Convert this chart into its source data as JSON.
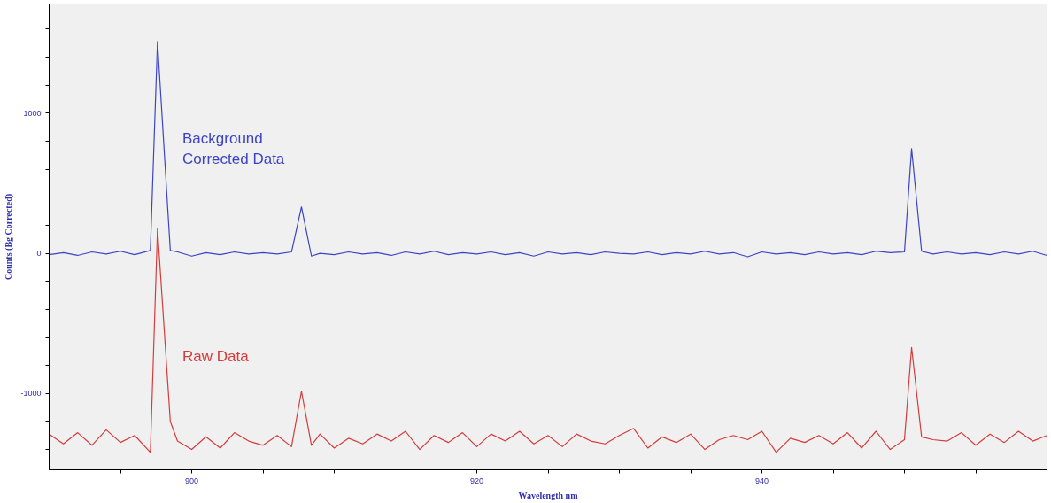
{
  "chart_data": {
    "type": "line",
    "xlabel": "Wavelength nm",
    "ylabel": "Counts (Bg Corrected)",
    "x": [
      890,
      891,
      892,
      893,
      894,
      895,
      896,
      897.1,
      897.6,
      898.5,
      899,
      900,
      901,
      902,
      903,
      904,
      905,
      906,
      907.0,
      907.7,
      908.4,
      909,
      910,
      911,
      912,
      913,
      914,
      915,
      916,
      917,
      918,
      919,
      920,
      921,
      922,
      923,
      924,
      925,
      926,
      927,
      928,
      929,
      930,
      931,
      932,
      933,
      934,
      935,
      936,
      937,
      938,
      939,
      940,
      941,
      942,
      943,
      944,
      945,
      946,
      947,
      948,
      949,
      950.0,
      950.5,
      951.2,
      952,
      953,
      954,
      955,
      956,
      957,
      958,
      959,
      960
    ],
    "series": [
      {
        "name": "Background Corrected Data",
        "color": "#3c44c4",
        "values": [
          -10,
          5,
          -15,
          10,
          -5,
          15,
          -10,
          20,
          1513,
          20,
          10,
          -20,
          5,
          -10,
          10,
          -5,
          5,
          -5,
          10,
          331,
          -20,
          0,
          -10,
          10,
          -5,
          5,
          -15,
          10,
          -5,
          15,
          -10,
          5,
          -5,
          10,
          -10,
          5,
          -20,
          10,
          -5,
          5,
          -10,
          10,
          0,
          -5,
          10,
          -10,
          5,
          -5,
          15,
          -5,
          5,
          -25,
          10,
          -5,
          5,
          -10,
          10,
          -5,
          5,
          -10,
          15,
          5,
          10,
          747,
          15,
          -5,
          10,
          -5,
          5,
          -10,
          10,
          -5,
          15,
          -15
        ]
      },
      {
        "name": "Raw Data",
        "color": "#d43c3c",
        "values": [
          -1290,
          -1360,
          -1280,
          -1370,
          -1260,
          -1350,
          -1300,
          -1420,
          177,
          -1200,
          -1340,
          -1400,
          -1310,
          -1390,
          -1280,
          -1340,
          -1370,
          -1300,
          -1380,
          -984,
          -1370,
          -1290,
          -1390,
          -1320,
          -1360,
          -1290,
          -1340,
          -1270,
          -1400,
          -1300,
          -1350,
          -1280,
          -1380,
          -1290,
          -1340,
          -1270,
          -1360,
          -1300,
          -1380,
          -1290,
          -1340,
          -1360,
          -1300,
          -1250,
          -1390,
          -1310,
          -1350,
          -1290,
          -1400,
          -1330,
          -1300,
          -1330,
          -1270,
          -1420,
          -1320,
          -1350,
          -1300,
          -1360,
          -1280,
          -1390,
          -1270,
          -1400,
          -1330,
          -671,
          -1310,
          -1330,
          -1340,
          -1280,
          -1370,
          -1290,
          -1350,
          -1270,
          -1340,
          -1300
        ]
      }
    ],
    "xlim": [
      890,
      960
    ],
    "xticks": [
      {
        "value": 895,
        "label": null
      },
      900,
      {
        "value": 905,
        "label": null
      },
      {
        "value": 910,
        "label": null
      },
      {
        "value": 915,
        "label": null
      },
      920,
      {
        "value": 925,
        "label": null
      },
      {
        "value": 930,
        "label": null
      },
      {
        "value": 935,
        "label": null
      },
      940,
      {
        "value": 945,
        "label": null
      },
      {
        "value": 950,
        "label": null
      },
      {
        "value": 955,
        "label": null
      }
    ],
    "ylim": [
      -1545,
      1780
    ],
    "yticks": [
      {
        "value": -1400,
        "label": null
      },
      {
        "value": -1200,
        "label": null
      },
      -1000,
      {
        "value": -800,
        "label": null
      },
      {
        "value": -600,
        "label": null
      },
      {
        "value": -400,
        "label": null
      },
      {
        "value": -200,
        "label": null
      },
      0,
      {
        "value": 200,
        "label": null
      },
      {
        "value": 400,
        "label": null
      },
      {
        "value": 600,
        "label": null
      },
      {
        "value": 800,
        "label": null
      },
      1000,
      {
        "value": 1200,
        "label": null
      },
      {
        "value": 1400,
        "label": null
      },
      {
        "value": 1600,
        "label": null
      }
    ],
    "grid": false,
    "legend": false,
    "line_style": "solid"
  }
}
